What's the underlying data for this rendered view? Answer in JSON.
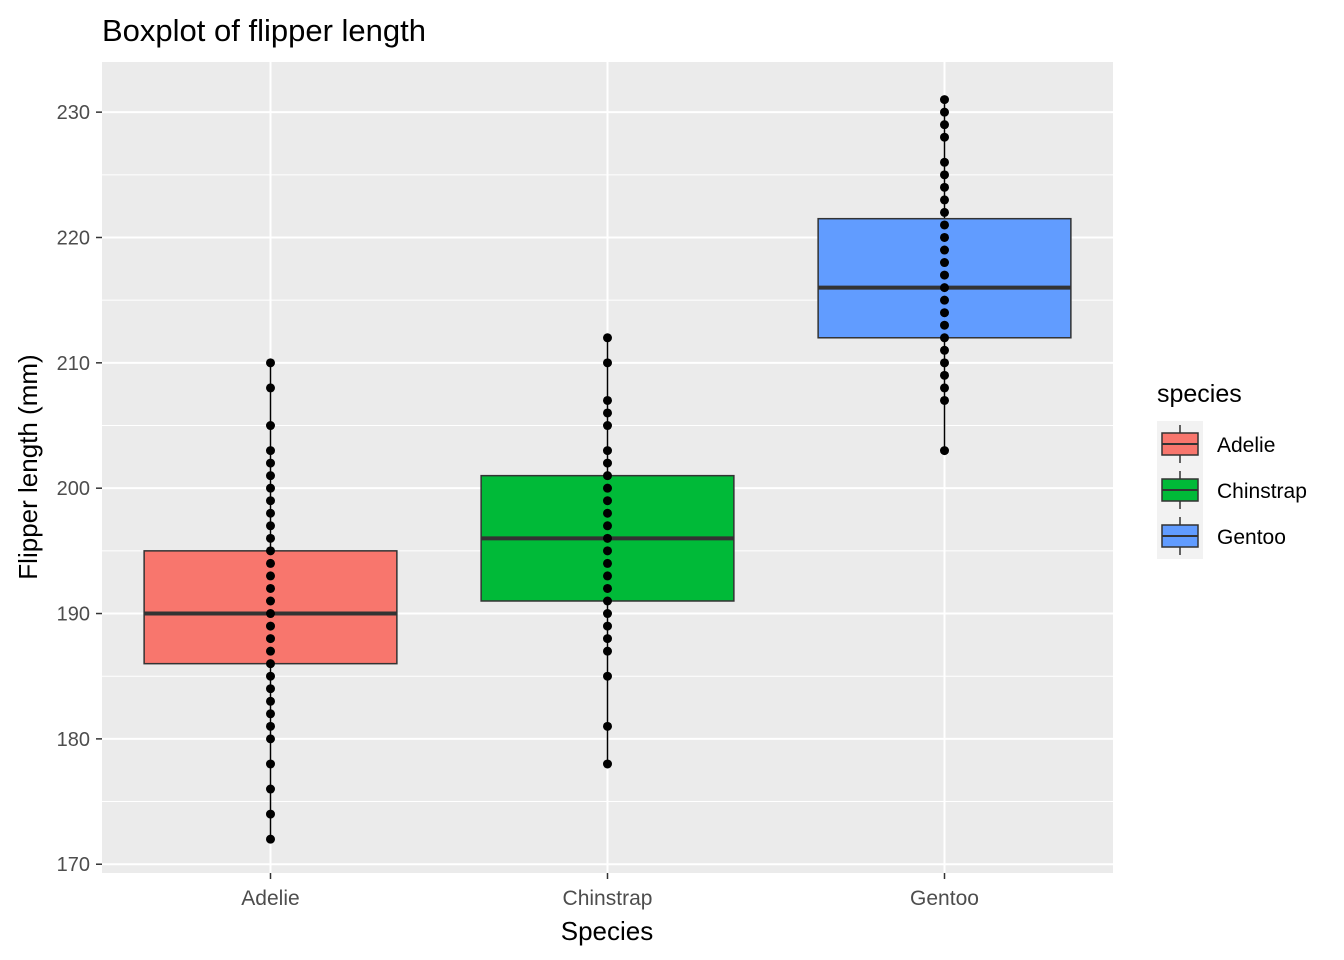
{
  "chart_data": {
    "type": "boxplot",
    "title": "Boxplot of flipper length",
    "xlabel": "Species",
    "ylabel": "Flipper length (mm)",
    "ylim": [
      169.3,
      234
    ],
    "yticks": [
      170,
      180,
      190,
      200,
      210,
      220,
      230
    ],
    "categories": [
      "Adelie",
      "Chinstrap",
      "Gentoo"
    ],
    "grid": true,
    "background": "#ebebeb",
    "legend": {
      "title": "species",
      "position": "right",
      "entries": [
        "Adelie",
        "Chinstrap",
        "Gentoo"
      ]
    },
    "series": [
      {
        "name": "Adelie",
        "color": "#f8766d",
        "q1": 186,
        "median": 190,
        "q3": 195,
        "whisker_low": 172,
        "whisker_high": 210,
        "points": [
          172,
          174,
          176,
          178,
          180,
          181,
          182,
          183,
          184,
          185,
          186,
          187,
          188,
          189,
          190,
          191,
          192,
          193,
          194,
          195,
          196,
          197,
          198,
          199,
          200,
          201,
          202,
          203,
          205,
          208,
          210
        ]
      },
      {
        "name": "Chinstrap",
        "color": "#00ba38",
        "q1": 191,
        "median": 196,
        "q3": 201,
        "whisker_low": 178,
        "whisker_high": 212,
        "points": [
          178,
          181,
          185,
          187,
          188,
          189,
          190,
          191,
          192,
          193,
          194,
          195,
          196,
          197,
          198,
          199,
          200,
          201,
          202,
          203,
          205,
          206,
          207,
          210,
          212
        ]
      },
      {
        "name": "Gentoo",
        "color": "#619cff",
        "q1": 212,
        "median": 216,
        "q3": 221.5,
        "whisker_low": 203,
        "whisker_high": 231,
        "points": [
          203,
          207,
          208,
          209,
          210,
          211,
          212,
          213,
          214,
          215,
          216,
          217,
          218,
          219,
          220,
          221,
          222,
          223,
          224,
          225,
          226,
          228,
          229,
          230,
          231
        ]
      }
    ]
  }
}
